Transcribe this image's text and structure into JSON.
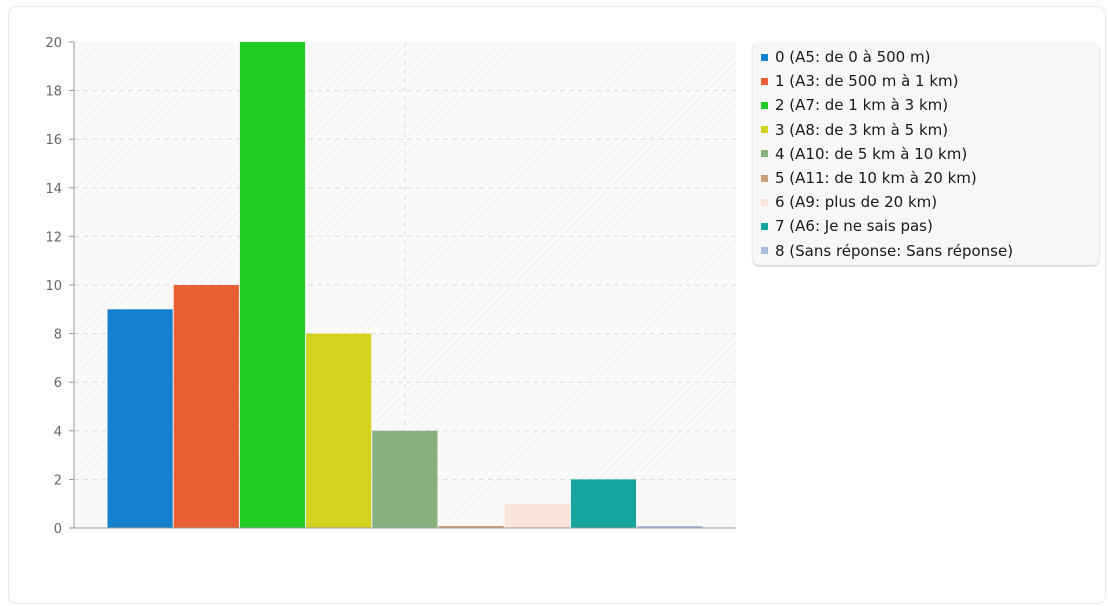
{
  "chart_data": {
    "type": "bar",
    "categories": [
      "0",
      "1",
      "2",
      "3",
      "4",
      "5",
      "6",
      "7",
      "8"
    ],
    "values": [
      9,
      10,
      20,
      8,
      4,
      0,
      1,
      2,
      0
    ],
    "ylim": [
      0,
      20
    ],
    "yticks": [
      "0",
      "2",
      "4",
      "6",
      "8",
      "10",
      "12",
      "14",
      "16",
      "18",
      "20"
    ],
    "grid": true,
    "legend_position": "top-right",
    "legend": [
      {
        "label": "0 (A5: de 0 à 500 m)",
        "color": "#1580cd"
      },
      {
        "label": "1 (A3: de 500 m à 1 km)",
        "color": "#e85f33"
      },
      {
        "label": "2 (A7: de 1 km à 3 km)",
        "color": "#21cd25"
      },
      {
        "label": "3 (A8: de 3 km à 5 km)",
        "color": "#d2d21f"
      },
      {
        "label": "4 (A10: de 5 km à 10 km)",
        "color": "#87b27f"
      },
      {
        "label": "5 (A11: de 10 km à 20 km)",
        "color": "#c8a07a"
      },
      {
        "label": "6 (A9: plus de 20 km)",
        "color": "#f9e4dc"
      },
      {
        "label": "7 (A6: Je ne sais pas)",
        "color": "#18a5a0"
      },
      {
        "label": "8 (Sans réponse: Sans réponse)",
        "color": "#a9bde0"
      }
    ]
  }
}
